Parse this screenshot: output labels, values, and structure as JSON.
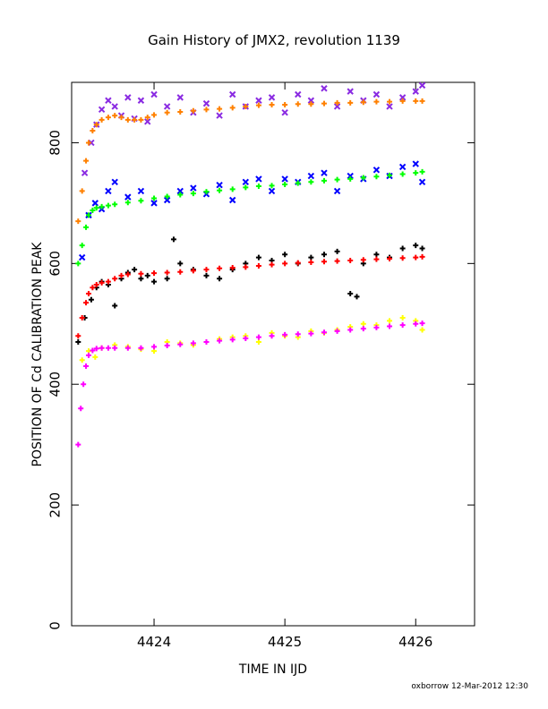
{
  "chart_data": {
    "type": "scatter",
    "title": "Gain History of JMX2, revolution 1139",
    "xlabel": "TIME IN IJD",
    "ylabel": "POSITION OF Cd CALIBRATION PEAK",
    "xlim": [
      4423.37,
      4426.45
    ],
    "ylim": [
      0,
      900
    ],
    "xticks": [
      "4424",
      "4425",
      "4426"
    ],
    "yticks": [
      "0",
      "200",
      "400",
      "600",
      "800"
    ],
    "grid": false,
    "footer": "oxborrow 12-Mar-2012 12:30",
    "series": [
      {
        "color": "#8a2be2",
        "marker": "x",
        "x": [
          4423.47,
          4423.52,
          4423.56,
          4423.6,
          4423.65,
          4423.7,
          4423.75,
          4423.8,
          4423.85,
          4423.9,
          4423.95,
          4424.0,
          4424.1,
          4424.2,
          4424.3,
          4424.4,
          4424.5,
          4424.6,
          4424.7,
          4424.8,
          4424.9,
          4425.0,
          4425.1,
          4425.2,
          4425.3,
          4425.4,
          4425.5,
          4425.6,
          4425.7,
          4425.8,
          4425.9,
          4426.0,
          4426.05
        ],
        "y": [
          750,
          800,
          830,
          855,
          870,
          860,
          845,
          875,
          840,
          870,
          835,
          880,
          860,
          875,
          850,
          865,
          845,
          880,
          860,
          870,
          875,
          850,
          880,
          870,
          890,
          860,
          885,
          870,
          880,
          860,
          875,
          885,
          895
        ]
      },
      {
        "color": "#ff8000",
        "marker": "+",
        "x": [
          4423.42,
          4423.45,
          4423.48,
          4423.5,
          4423.53,
          4423.56,
          4423.6,
          4423.65,
          4423.7,
          4423.75,
          4423.8,
          4423.85,
          4423.9,
          4423.95,
          4424.0,
          4424.1,
          4424.2,
          4424.3,
          4424.4,
          4424.5,
          4424.6,
          4424.7,
          4424.8,
          4424.9,
          4425.0,
          4425.1,
          4425.2,
          4425.3,
          4425.4,
          4425.5,
          4425.6,
          4425.7,
          4425.8,
          4425.9,
          4426.0,
          4426.05
        ],
        "y": [
          670,
          720,
          770,
          800,
          820,
          830,
          838,
          842,
          845,
          842,
          838,
          838,
          838,
          842,
          846,
          850,
          851,
          853,
          855,
          856,
          858,
          860,
          862,
          863,
          863,
          864,
          864,
          865,
          866,
          866,
          867,
          868,
          868,
          869,
          869,
          869
        ]
      },
      {
        "color": "#0000ff",
        "marker": "x",
        "x": [
          4423.45,
          4423.5,
          4423.55,
          4423.6,
          4423.65,
          4423.7,
          4423.8,
          4423.9,
          4424.0,
          4424.1,
          4424.2,
          4424.3,
          4424.4,
          4424.5,
          4424.6,
          4424.7,
          4424.8,
          4424.9,
          4425.0,
          4425.1,
          4425.2,
          4425.3,
          4425.4,
          4425.5,
          4425.6,
          4425.7,
          4425.8,
          4425.9,
          4426.0,
          4426.05
        ],
        "y": [
          610,
          680,
          700,
          690,
          720,
          735,
          710,
          720,
          700,
          705,
          720,
          725,
          715,
          730,
          705,
          735,
          740,
          720,
          740,
          735,
          745,
          750,
          720,
          745,
          740,
          755,
          745,
          760,
          765,
          735
        ]
      },
      {
        "color": "#00ff00",
        "marker": "+",
        "x": [
          4423.42,
          4423.45,
          4423.48,
          4423.5,
          4423.53,
          4423.56,
          4423.6,
          4423.65,
          4423.7,
          4423.8,
          4423.9,
          4424.0,
          4424.1,
          4424.2,
          4424.3,
          4424.4,
          4424.5,
          4424.6,
          4424.7,
          4424.8,
          4424.9,
          4425.0,
          4425.1,
          4425.2,
          4425.3,
          4425.4,
          4425.5,
          4425.6,
          4425.7,
          4425.8,
          4425.9,
          4426.0,
          4426.05
        ],
        "y": [
          600,
          630,
          660,
          680,
          688,
          692,
          694,
          696,
          698,
          701,
          704,
          708,
          711,
          714,
          716,
          719,
          721,
          723,
          726,
          728,
          729,
          731,
          733,
          735,
          737,
          739,
          740,
          742,
          744,
          746,
          748,
          750,
          752
        ]
      },
      {
        "color": "#000000",
        "marker": "+",
        "x": [
          4423.42,
          4423.47,
          4423.52,
          4423.56,
          4423.6,
          4423.65,
          4423.7,
          4423.75,
          4423.8,
          4423.85,
          4423.9,
          4423.95,
          4424.0,
          4424.1,
          4424.15,
          4424.2,
          4424.3,
          4424.4,
          4424.5,
          4424.6,
          4424.7,
          4424.8,
          4424.9,
          4425.0,
          4425.1,
          4425.2,
          4425.3,
          4425.4,
          4425.5,
          4425.55,
          4425.6,
          4425.7,
          4425.8,
          4425.9,
          4426.0,
          4426.05
        ],
        "y": [
          470,
          510,
          540,
          560,
          570,
          565,
          530,
          575,
          585,
          590,
          575,
          580,
          570,
          575,
          640,
          600,
          590,
          580,
          575,
          590,
          600,
          610,
          605,
          615,
          600,
          610,
          615,
          620,
          550,
          545,
          600,
          615,
          610,
          625,
          630,
          625
        ]
      },
      {
        "color": "#ff0000",
        "marker": "+",
        "x": [
          4423.42,
          4423.45,
          4423.48,
          4423.5,
          4423.53,
          4423.56,
          4423.6,
          4423.65,
          4423.7,
          4423.75,
          4423.8,
          4423.9,
          4424.0,
          4424.1,
          4424.2,
          4424.3,
          4424.4,
          4424.5,
          4424.6,
          4424.7,
          4424.8,
          4424.9,
          4425.0,
          4425.1,
          4425.2,
          4425.3,
          4425.4,
          4425.5,
          4425.6,
          4425.7,
          4425.8,
          4425.9,
          4426.0,
          4426.05
        ],
        "y": [
          480,
          510,
          535,
          550,
          560,
          565,
          568,
          570,
          575,
          580,
          582,
          583,
          584,
          585,
          586,
          588,
          590,
          592,
          593,
          594,
          596,
          598,
          600,
          601,
          602,
          603,
          604,
          605,
          606,
          607,
          608,
          609,
          610,
          611
        ]
      },
      {
        "color": "#ffff00",
        "marker": "+",
        "x": [
          4423.45,
          4423.5,
          4423.55,
          4423.6,
          4423.7,
          4423.8,
          4423.9,
          4424.0,
          4424.1,
          4424.2,
          4424.3,
          4424.4,
          4424.5,
          4424.6,
          4424.7,
          4424.8,
          4424.9,
          4425.0,
          4425.1,
          4425.2,
          4425.3,
          4425.4,
          4425.5,
          4425.6,
          4425.7,
          4425.8,
          4425.9,
          4426.0,
          4426.05
        ],
        "y": [
          440,
          455,
          445,
          460,
          465,
          462,
          458,
          455,
          470,
          468,
          465,
          470,
          475,
          478,
          480,
          470,
          485,
          480,
          478,
          488,
          485,
          490,
          495,
          500,
          498,
          505,
          510,
          505,
          490
        ]
      },
      {
        "color": "#ff00ff",
        "marker": "+",
        "x": [
          4423.42,
          4423.44,
          4423.46,
          4423.48,
          4423.5,
          4423.53,
          4423.56,
          4423.6,
          4423.65,
          4423.7,
          4423.8,
          4423.9,
          4424.0,
          4424.1,
          4424.2,
          4424.3,
          4424.4,
          4424.5,
          4424.6,
          4424.7,
          4424.8,
          4424.9,
          4425.0,
          4425.1,
          4425.2,
          4425.3,
          4425.4,
          4425.5,
          4425.6,
          4425.7,
          4425.8,
          4425.9,
          4426.0,
          4426.05
        ],
        "y": [
          300,
          360,
          400,
          430,
          448,
          456,
          459,
          460,
          460,
          460,
          460,
          460,
          462,
          464,
          466,
          468,
          470,
          472,
          474,
          476,
          478,
          480,
          482,
          483,
          484,
          486,
          488,
          490,
          492,
          494,
          496,
          498,
          500,
          501
        ]
      }
    ]
  }
}
